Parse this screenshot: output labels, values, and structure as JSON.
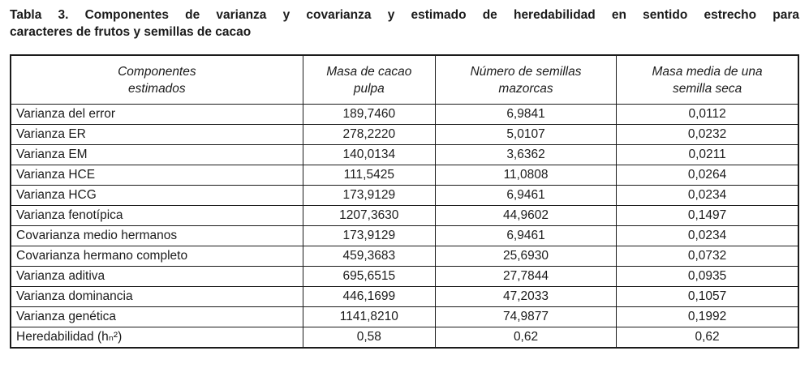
{
  "colors": {
    "background": "#ffffff",
    "text": "#1b1b1b",
    "border": "#1b1b1b"
  },
  "caption": {
    "line1": "Tabla 3. Componentes de varianza y covarianza y estimado de heredabilidad en sentido estrecho para",
    "line2": "caracteres de frutos y semillas de cacao"
  },
  "table": {
    "columns": [
      {
        "label": "Componentes\nestimados",
        "width_pct": 37.1
      },
      {
        "label": "Masa de cacao\npulpa",
        "width_pct": 16.8
      },
      {
        "label": "Número de semillas\nmazorcas",
        "width_pct": 23.0
      },
      {
        "label": "Masa media de una\nsemilla seca",
        "width_pct": 23.1
      }
    ],
    "rows": [
      {
        "label": "Varianza del error",
        "values": [
          "189,7460",
          "6,9841",
          "0,0112"
        ]
      },
      {
        "label": "Varianza ER",
        "values": [
          "278,2220",
          "5,0107",
          "0,0232"
        ]
      },
      {
        "label": "Varianza EM",
        "values": [
          "140,0134",
          "3,6362",
          "0,0211"
        ]
      },
      {
        "label": "Varianza HCE",
        "values": [
          "111,5425",
          "11,0808",
          "0,0264"
        ]
      },
      {
        "label": "Varianza HCG",
        "values": [
          "173,9129",
          "6,9461",
          "0,0234"
        ]
      },
      {
        "label": "Varianza fenotípica",
        "values": [
          "1207,3630",
          "44,9602",
          "0,1497"
        ]
      },
      {
        "label": "Covarianza medio hermanos",
        "values": [
          "173,9129",
          "6,9461",
          "0,0234"
        ]
      },
      {
        "label": "Covarianza hermano completo",
        "values": [
          "459,3683",
          "25,6930",
          "0,0732"
        ]
      },
      {
        "label": "Varianza aditiva",
        "values": [
          "695,6515",
          "27,7844",
          "0,0935"
        ]
      },
      {
        "label": "Varianza dominancia",
        "values": [
          "446,1699",
          "47,2033",
          "0,1057"
        ]
      },
      {
        "label": "Varianza genética",
        "values": [
          "1141,8210",
          "74,9877",
          "0,1992"
        ]
      },
      {
        "label": "Heredabilidad (hₙ²)",
        "values": [
          "0,58",
          "0,62",
          "0,62"
        ]
      }
    ]
  }
}
